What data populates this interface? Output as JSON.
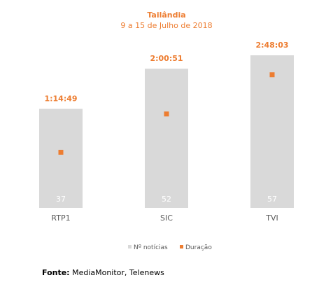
{
  "chart_data": {
    "type": "bar",
    "title": "Tailândia",
    "subtitle": "9 a 15 de Julho de 2018",
    "categories": [
      "RTP1",
      "SIC",
      "TVI"
    ],
    "series": [
      {
        "name": "Nº notícias",
        "values": [
          37,
          52,
          57
        ],
        "color": "#D9D9D9"
      },
      {
        "name": "Duração",
        "values": [
          4489,
          7251,
          10083
        ],
        "labels": [
          "1:14:49",
          "2:00:51",
          "2:48:03"
        ],
        "color": "#ED7D31"
      }
    ],
    "legend": "bottom-center",
    "grid": false
  },
  "footer": {
    "label": "Fonte:",
    "text": "MediaMonitor, Telenews"
  }
}
